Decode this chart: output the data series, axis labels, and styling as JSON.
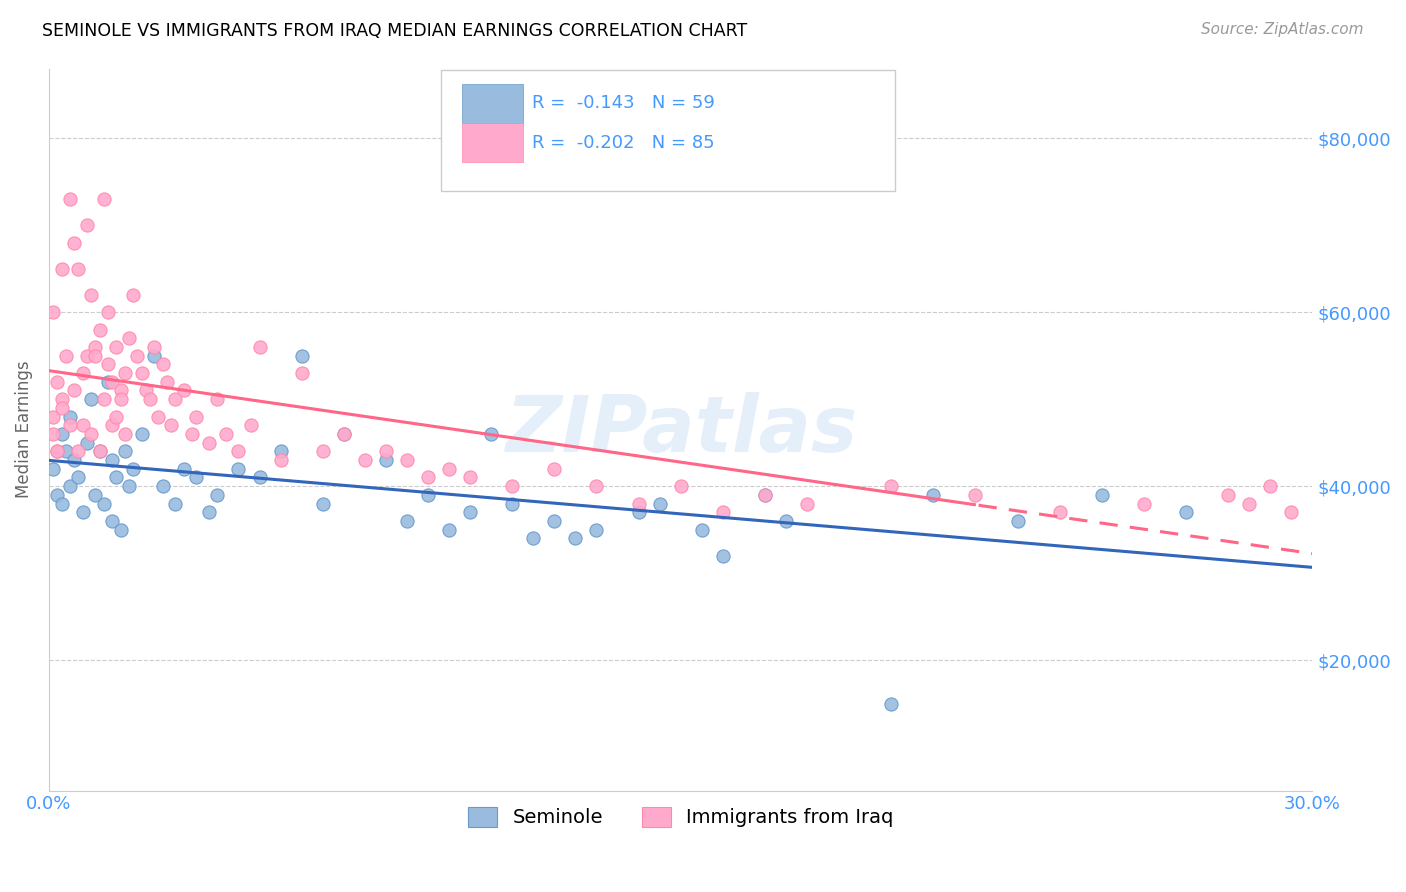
{
  "title": "SEMINOLE VS IMMIGRANTS FROM IRAQ MEDIAN EARNINGS CORRELATION CHART",
  "source": "Source: ZipAtlas.com",
  "ylabel": "Median Earnings",
  "ytick_labels": [
    "$20,000",
    "$40,000",
    "$60,000",
    "$80,000"
  ],
  "ytick_values": [
    20000,
    40000,
    60000,
    80000
  ],
  "xmin": 0.0,
  "xmax": 0.3,
  "ymin": 5000,
  "ymax": 88000,
  "watermark": "ZIPatlas",
  "legend_r1": "R =  -0.143",
  "legend_n1": "N = 59",
  "legend_r2": "R =  -0.202",
  "legend_n2": "N = 85",
  "color_blue": "#99BBDD",
  "color_pink": "#FFAACC",
  "color_blue_edge": "#6699CC",
  "color_pink_edge": "#FF88AA",
  "color_line_blue": "#3366BB",
  "color_line_pink": "#FF6688",
  "color_axis_labels": "#4499FF",
  "seminole_slope": -30000,
  "seminole_intercept": 43000,
  "iraq_slope": -25000,
  "iraq_intercept": 49000,
  "seminole_x": [
    0.001,
    0.002,
    0.003,
    0.003,
    0.004,
    0.005,
    0.005,
    0.006,
    0.007,
    0.008,
    0.009,
    0.01,
    0.011,
    0.012,
    0.013,
    0.014,
    0.015,
    0.015,
    0.016,
    0.017,
    0.018,
    0.019,
    0.02,
    0.022,
    0.025,
    0.027,
    0.03,
    0.032,
    0.035,
    0.038,
    0.04,
    0.045,
    0.05,
    0.055,
    0.06,
    0.065,
    0.07,
    0.08,
    0.085,
    0.09,
    0.095,
    0.1,
    0.105,
    0.11,
    0.115,
    0.12,
    0.125,
    0.13,
    0.14,
    0.145,
    0.155,
    0.16,
    0.17,
    0.175,
    0.2,
    0.21,
    0.23,
    0.25,
    0.27
  ],
  "seminole_y": [
    42000,
    39000,
    38000,
    46000,
    44000,
    40000,
    48000,
    43000,
    41000,
    37000,
    45000,
    50000,
    39000,
    44000,
    38000,
    52000,
    43000,
    36000,
    41000,
    35000,
    44000,
    40000,
    42000,
    46000,
    55000,
    40000,
    38000,
    42000,
    41000,
    37000,
    39000,
    42000,
    41000,
    44000,
    55000,
    38000,
    46000,
    43000,
    36000,
    39000,
    35000,
    37000,
    46000,
    38000,
    34000,
    36000,
    34000,
    35000,
    37000,
    38000,
    35000,
    32000,
    39000,
    36000,
    15000,
    39000,
    36000,
    39000,
    37000
  ],
  "iraq_x": [
    0.001,
    0.001,
    0.002,
    0.002,
    0.003,
    0.003,
    0.004,
    0.005,
    0.005,
    0.006,
    0.006,
    0.007,
    0.007,
    0.008,
    0.008,
    0.009,
    0.009,
    0.01,
    0.01,
    0.011,
    0.011,
    0.012,
    0.012,
    0.013,
    0.013,
    0.014,
    0.014,
    0.015,
    0.015,
    0.016,
    0.016,
    0.017,
    0.017,
    0.018,
    0.018,
    0.019,
    0.02,
    0.021,
    0.022,
    0.023,
    0.024,
    0.025,
    0.026,
    0.027,
    0.028,
    0.029,
    0.03,
    0.032,
    0.034,
    0.035,
    0.038,
    0.04,
    0.042,
    0.045,
    0.048,
    0.05,
    0.055,
    0.06,
    0.065,
    0.07,
    0.075,
    0.08,
    0.085,
    0.09,
    0.095,
    0.1,
    0.11,
    0.12,
    0.13,
    0.14,
    0.15,
    0.16,
    0.17,
    0.18,
    0.2,
    0.22,
    0.24,
    0.26,
    0.28,
    0.285,
    0.29,
    0.295,
    0.001,
    0.002,
    0.003
  ],
  "iraq_y": [
    48000,
    46000,
    52000,
    44000,
    50000,
    65000,
    55000,
    73000,
    47000,
    68000,
    51000,
    44000,
    65000,
    53000,
    47000,
    70000,
    55000,
    46000,
    62000,
    56000,
    55000,
    44000,
    58000,
    50000,
    73000,
    54000,
    60000,
    52000,
    47000,
    48000,
    56000,
    51000,
    50000,
    53000,
    46000,
    57000,
    62000,
    55000,
    53000,
    51000,
    50000,
    56000,
    48000,
    54000,
    52000,
    47000,
    50000,
    51000,
    46000,
    48000,
    45000,
    50000,
    46000,
    44000,
    47000,
    56000,
    43000,
    53000,
    44000,
    46000,
    43000,
    44000,
    43000,
    41000,
    42000,
    41000,
    40000,
    42000,
    40000,
    38000,
    40000,
    37000,
    39000,
    38000,
    40000,
    39000,
    37000,
    38000,
    39000,
    38000,
    40000,
    37000,
    60000,
    44000,
    49000
  ]
}
